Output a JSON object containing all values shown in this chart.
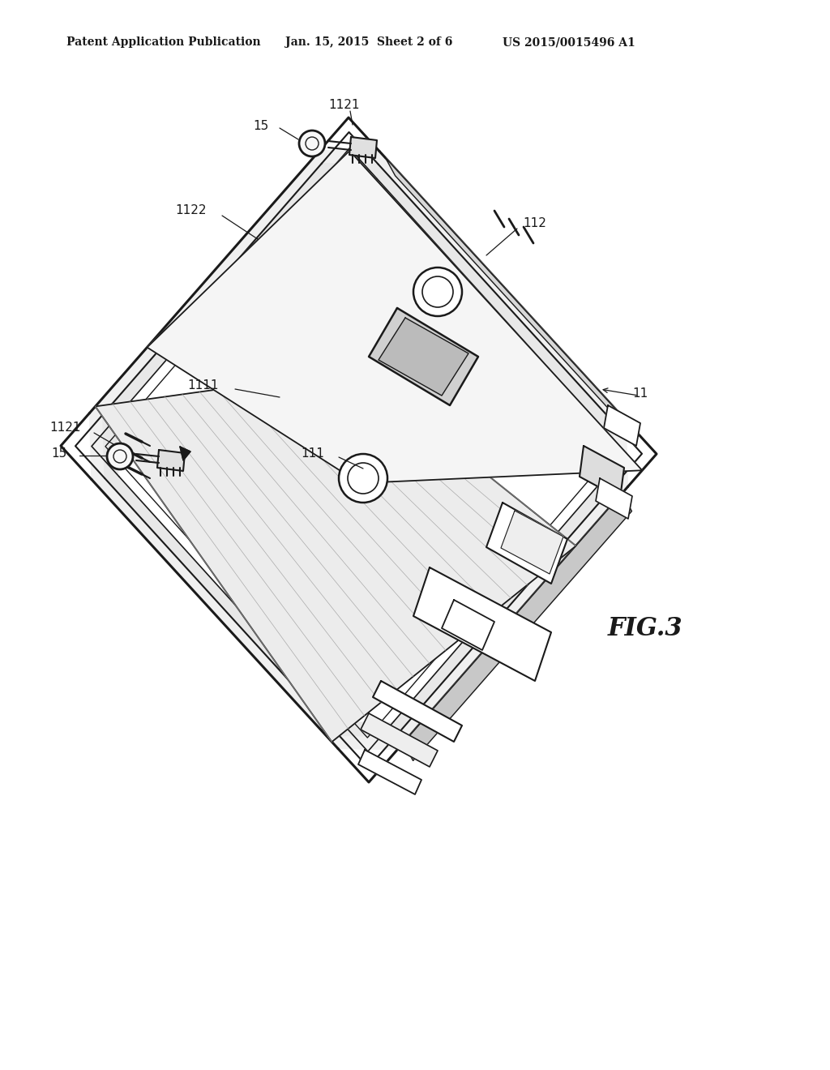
{
  "background_color": "#ffffff",
  "header_left": "Patent Application Publication",
  "header_center": "Jan. 15, 2015  Sheet 2 of 6",
  "header_right": "US 2015/0015496 A1",
  "fig_label": "FIG.3",
  "line_color": "#1a1a1a",
  "label_color": "#1a1a1a",
  "header_fontsize": 10,
  "fig_fontsize": 22,
  "label_fontsize": 11
}
